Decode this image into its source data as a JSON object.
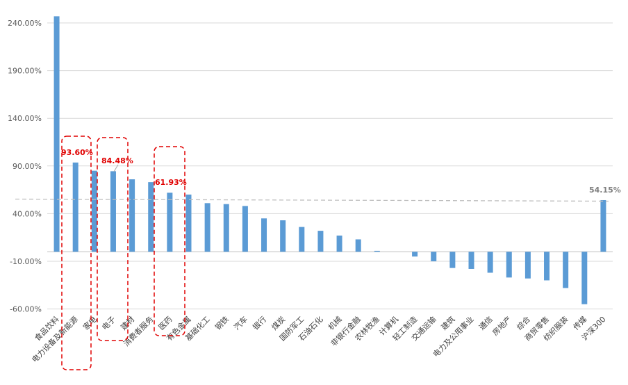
{
  "chart_data": {
    "type": "bar",
    "categories": [
      "食品饮料",
      "电力设备及新能源",
      "家电",
      "电子",
      "建材",
      "消费者服务",
      "医药",
      "有色金属",
      "基础化工",
      "钢铁",
      "汽车",
      "银行",
      "煤炭",
      "国防军工",
      "石油石化",
      "机械",
      "非银行金融",
      "农林牧渔",
      "计算机",
      "轻工制造",
      "交通运输",
      "建筑",
      "电力及公用事业",
      "通信",
      "房地产",
      "综合",
      "商贸零售",
      "纺织服装",
      "传媒",
      "沪深300"
    ],
    "values": [
      247,
      93.6,
      85,
      84.48,
      76,
      73,
      61.93,
      60,
      51,
      50,
      48,
      35,
      33,
      26,
      22,
      17,
      13,
      1,
      0,
      -5,
      -10,
      -17,
      -18,
      -22,
      -27,
      -28,
      -30,
      -38,
      -55,
      54.15
    ],
    "yticks": [
      "240.00%",
      "190.00%",
      "140.00%",
      "90.00%",
      "40.00%",
      "-10.00%",
      "-60.00%"
    ],
    "ylim": [
      -70,
      250
    ],
    "bar_color": "#5b9bd5",
    "grid": true,
    "reference_line": {
      "value": 54.15,
      "label": "54.15%",
      "color": "#bfbfbf"
    },
    "annotations": [
      {
        "label": "93.60%",
        "category_index": 1
      },
      {
        "label": "84.48%",
        "category_index": 3
      },
      {
        "label": "61.93%",
        "category_index": 6
      }
    ],
    "highlight_color": "#e00000"
  }
}
